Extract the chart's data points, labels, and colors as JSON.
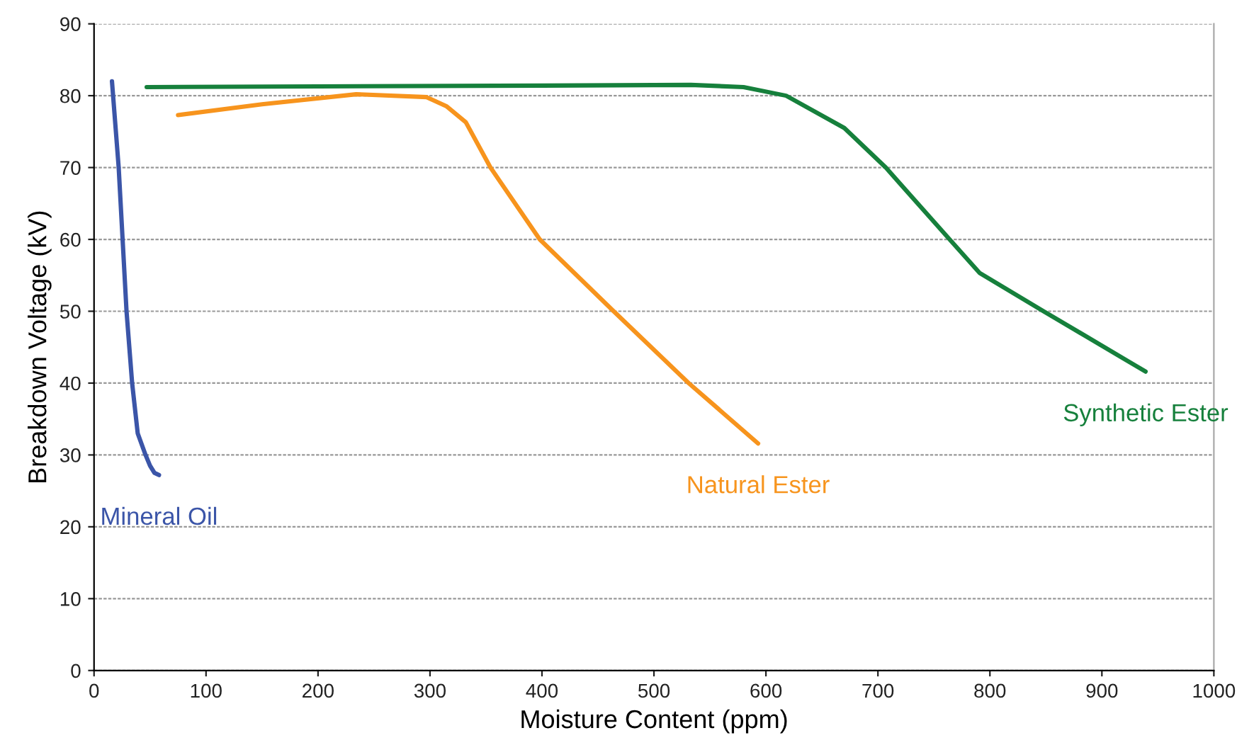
{
  "chart_data": {
    "type": "line",
    "xlabel": "Moisture Content (ppm)",
    "ylabel": "Breakdown Voltage (kV)",
    "xlim": [
      0,
      1000
    ],
    "xticks": [
      0,
      100,
      200,
      300,
      400,
      500,
      600,
      700,
      800,
      900,
      1000
    ],
    "ylim": [
      0,
      90
    ],
    "yticks": [
      0,
      10,
      20,
      30,
      40,
      50,
      60,
      70,
      80,
      90
    ],
    "grid": "y",
    "legend": false,
    "marker": "none",
    "line_style": "solid",
    "series": [
      {
        "name": "Mineral Oil",
        "color": "#3b55a8",
        "x": [
          16,
          22,
          29,
          34,
          39,
          46,
          50,
          54,
          58
        ],
        "values": [
          82,
          70,
          50,
          40,
          33,
          30,
          28.5,
          27.5,
          27.2
        ]
      },
      {
        "name": "Natural Ester",
        "color": "#f7941d",
        "x": [
          75,
          150,
          234,
          297,
          315,
          332,
          354,
          398,
          464,
          531,
          593
        ],
        "values": [
          77.3,
          78.8,
          80.2,
          79.8,
          78.5,
          76.3,
          70,
          60,
          50,
          40,
          31.6
        ]
      },
      {
        "name": "Synthetic Ester",
        "color": "#16803c",
        "x": [
          47,
          200,
          400,
          533,
          580,
          618,
          670,
          707,
          764,
          791,
          848,
          939
        ],
        "values": [
          81.2,
          81.3,
          81.4,
          81.5,
          81.2,
          80,
          75.5,
          70,
          60,
          55.3,
          50,
          41.6
        ]
      }
    ]
  }
}
